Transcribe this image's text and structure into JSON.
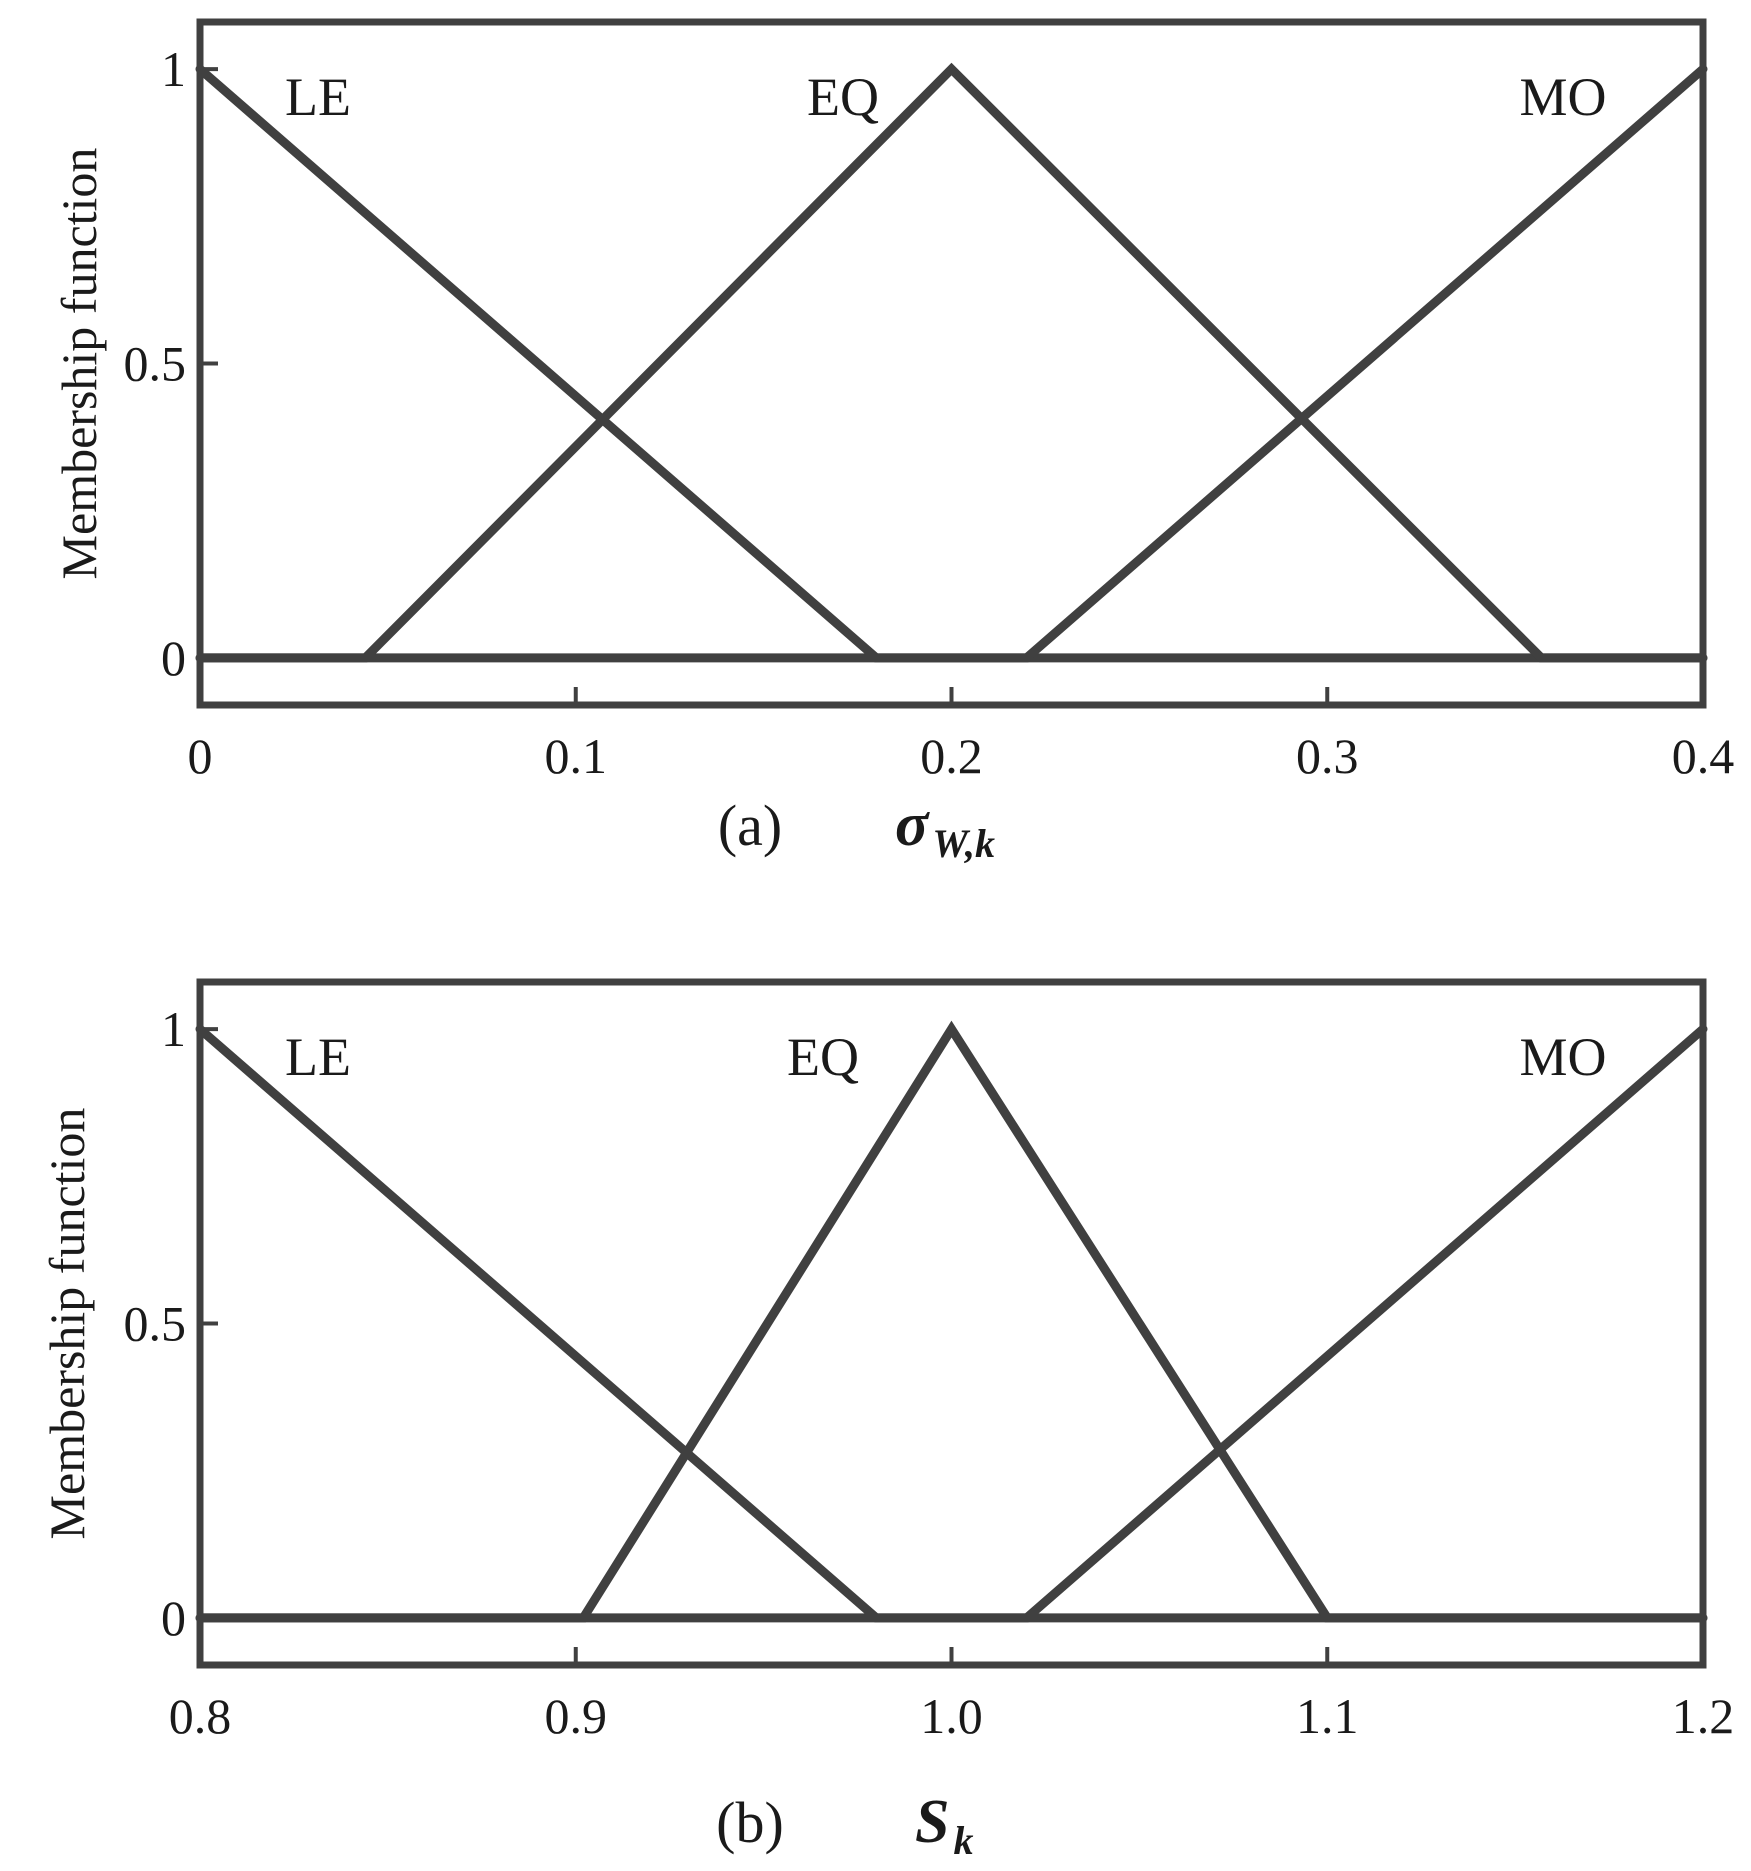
{
  "chart_data": [
    {
      "type": "line",
      "panel_label": "(a)",
      "xlabel": {
        "main": "σ",
        "sub": "W,k"
      },
      "ylabel": "Membership function",
      "xlim": [
        0,
        0.4
      ],
      "ylim": [
        -0.08,
        1.08
      ],
      "x_ticks": [
        "0",
        "0.1",
        "0.2",
        "0.3",
        "0.4"
      ],
      "x_tick_values": [
        0,
        0.1,
        0.2,
        0.3,
        0.4
      ],
      "y_ticks": [
        "0",
        "0.5",
        "1"
      ],
      "y_tick_values": [
        0,
        0.5,
        1
      ],
      "grid": false,
      "series": [
        {
          "name": "LE",
          "x": [
            0,
            0.18,
            0.4
          ],
          "y": [
            1,
            0,
            0
          ]
        },
        {
          "name": "EQ",
          "x": [
            0,
            0.044,
            0.2,
            0.357,
            0.4
          ],
          "y": [
            0,
            0,
            1,
            0,
            0
          ]
        },
        {
          "name": "MO",
          "x": [
            0,
            0.22,
            0.4
          ],
          "y": [
            0,
            0,
            1
          ]
        }
      ]
    },
    {
      "type": "line",
      "panel_label": "(b)",
      "xlabel": {
        "main": "S",
        "sub": "k"
      },
      "ylabel": "Membership function",
      "xlim": [
        0.8,
        1.2
      ],
      "ylim": [
        -0.08,
        1.08
      ],
      "x_ticks": [
        "0.8",
        "0.9",
        "1.0",
        "1.1",
        "1.2"
      ],
      "x_tick_values": [
        0.8,
        0.9,
        1.0,
        1.1,
        1.2
      ],
      "y_ticks": [
        "0",
        "0.5",
        "1"
      ],
      "y_tick_values": [
        0,
        0.5,
        1
      ],
      "grid": false,
      "series": [
        {
          "name": "LE",
          "x": [
            0.8,
            0.98,
            1.2
          ],
          "y": [
            1,
            0,
            0
          ]
        },
        {
          "name": "EQ",
          "x": [
            0.8,
            0.902,
            1.0,
            1.1,
            1.2
          ],
          "y": [
            0,
            0,
            1,
            0,
            0
          ]
        },
        {
          "name": "MO",
          "x": [
            0.8,
            1.02,
            1.2
          ],
          "y": [
            0,
            0,
            1
          ]
        }
      ]
    }
  ],
  "colors": {
    "line": "#404040",
    "text": "#1a1a1a",
    "background": "#ffffff"
  }
}
